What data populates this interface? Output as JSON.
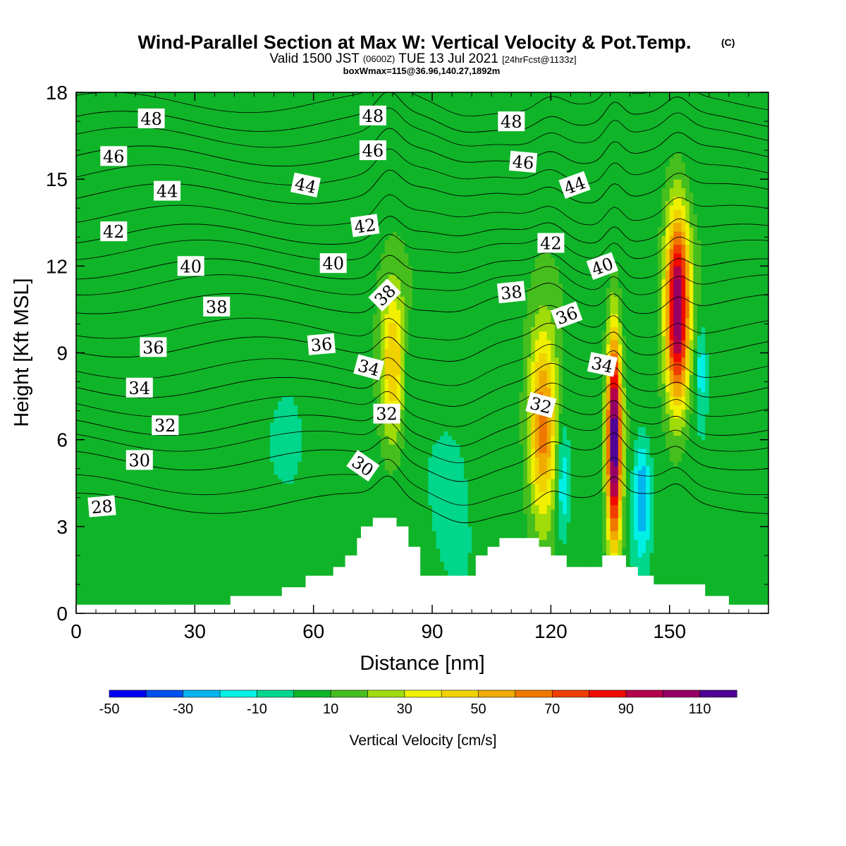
{
  "colors": {
    "levels": [
      "#0000f0",
      "#0050f0",
      "#00b4f0",
      "#00f0e6",
      "#00d78c",
      "#10b428",
      "#46be1e",
      "#a0dc0a",
      "#f0f000",
      "#f0d200",
      "#f0aa00",
      "#f07800",
      "#f03c00",
      "#f00a00",
      "#b4004b",
      "#960064",
      "#500096"
    ],
    "terrain": "#ffffff",
    "contour": "#000000"
  },
  "header": {
    "title": "Wind-Parallel Section at Max W: Vertical Velocity & Pot.Temp.",
    "title_tag": "(C)",
    "subtitle_pre": "Valid 1500 JST",
    "subtitle_zulu": "(0600Z)",
    "subtitle_date": "TUE 13 Jul 2021",
    "subtitle_fcst": "[24hrFcst@1133z]",
    "subtitle3": "boxWmax=115@36.96,140.27,1892m"
  },
  "chart_data": {
    "type": "heatmap",
    "title": "Wind-Parallel Section at Max W: Vertical Velocity & Pot.Temp.",
    "xlabel": "Distance [nm]",
    "ylabel": "Height [Kft MSL]",
    "xlim": [
      0,
      175
    ],
    "ylim": [
      0,
      18
    ],
    "x_ticks": [
      0,
      30,
      60,
      90,
      120,
      150
    ],
    "y_ticks": [
      0,
      3,
      6,
      9,
      12,
      15,
      18
    ],
    "colorbar": {
      "title": "Vertical Velocity [cm/s]",
      "bounds": [
        -50,
        -40,
        -30,
        -20,
        -10,
        0,
        10,
        20,
        30,
        40,
        50,
        60,
        70,
        80,
        90,
        100,
        110,
        120
      ],
      "tick_values": [
        -50,
        -30,
        -10,
        10,
        30,
        50,
        70,
        90,
        110
      ],
      "tick_labels": [
        "-50",
        "-30",
        "-10",
        "10",
        "30",
        "50",
        "70",
        "90",
        "110"
      ]
    },
    "vertical_velocity_background": 5,
    "updraft_cores": [
      {
        "x": 80,
        "z": 8.5,
        "peak": 45
      },
      {
        "x": 118,
        "z": 6.5,
        "peak": 65
      },
      {
        "x": 136,
        "z": 6.0,
        "peak": 115
      },
      {
        "x": 152,
        "z": 10.5,
        "peak": 105
      }
    ],
    "downdraft_cores": [
      {
        "x": 143,
        "z": 4.0,
        "peak": -38
      },
      {
        "x": 123,
        "z": 4.5,
        "peak": -25
      },
      {
        "x": 158,
        "z": 8.5,
        "peak": -22
      },
      {
        "x": 95,
        "z": 4.0,
        "peak": -14
      },
      {
        "x": 54,
        "z": 6.0,
        "peak": -12
      },
      {
        "x": 84,
        "z": 8.5,
        "peak": -12
      }
    ],
    "terrain_profile": [
      [
        0,
        0.3
      ],
      [
        39,
        0.3
      ],
      [
        39,
        0.6
      ],
      [
        52,
        0.6
      ],
      [
        52,
        0.9
      ],
      [
        58,
        0.9
      ],
      [
        58,
        1.3
      ],
      [
        65,
        1.3
      ],
      [
        65,
        1.6
      ],
      [
        68,
        1.6
      ],
      [
        68,
        2.0
      ],
      [
        71,
        2.0
      ],
      [
        71,
        2.6
      ],
      [
        72,
        2.6
      ],
      [
        72,
        3.0
      ],
      [
        75,
        3.0
      ],
      [
        75,
        3.3
      ],
      [
        81,
        3.3
      ],
      [
        81,
        3.0
      ],
      [
        84,
        3.0
      ],
      [
        84,
        2.3
      ],
      [
        87,
        2.3
      ],
      [
        87,
        1.3
      ],
      [
        101,
        1.3
      ],
      [
        101,
        2.0
      ],
      [
        104,
        2.0
      ],
      [
        104,
        2.3
      ],
      [
        107,
        2.3
      ],
      [
        107,
        2.6
      ],
      [
        117,
        2.6
      ],
      [
        117,
        2.3
      ],
      [
        120,
        2.3
      ],
      [
        120,
        2.0
      ],
      [
        124,
        2.0
      ],
      [
        124,
        1.6
      ],
      [
        133,
        1.6
      ],
      [
        133,
        2.0
      ],
      [
        139,
        2.0
      ],
      [
        139,
        1.6
      ],
      [
        142,
        1.6
      ],
      [
        142,
        1.3
      ],
      [
        146,
        1.3
      ],
      [
        146,
        1.0
      ],
      [
        159,
        1.0
      ],
      [
        159,
        0.6
      ],
      [
        165,
        0.6
      ],
      [
        165,
        0.3
      ],
      [
        175,
        0.3
      ]
    ],
    "theta_contours": [
      {
        "value": 28,
        "base": 3.8
      },
      {
        "value": 30,
        "base": 5.3
      },
      {
        "value": 32,
        "base": 6.5
      },
      {
        "value": 34,
        "base": 7.8
      },
      {
        "value": 36,
        "base": 9.2
      },
      {
        "value": 38,
        "base": 10.7
      },
      {
        "value": 40,
        "base": 11.9
      },
      {
        "value": 42,
        "base": 13.1
      },
      {
        "value": 44,
        "base": 14.5
      },
      {
        "value": 46,
        "base": 15.8
      },
      {
        "value": 48,
        "base": 17.0
      }
    ],
    "contour_labels": [
      {
        "text": "48",
        "x": 19,
        "z": 17.1,
        "rot": 0
      },
      {
        "text": "48",
        "x": 75,
        "z": 17.2,
        "rot": 0
      },
      {
        "text": "48",
        "x": 110,
        "z": 17.0,
        "rot": 0
      },
      {
        "text": "46",
        "x": 9.5,
        "z": 15.8,
        "rot": 0
      },
      {
        "text": "46",
        "x": 75,
        "z": 16.0,
        "rot": 0
      },
      {
        "text": "46",
        "x": 113,
        "z": 15.6,
        "rot": 5
      },
      {
        "text": "44",
        "x": 23,
        "z": 14.6,
        "rot": 0
      },
      {
        "text": "44",
        "x": 58,
        "z": 14.8,
        "rot": 12
      },
      {
        "text": "44",
        "x": 126,
        "z": 14.8,
        "rot": -20
      },
      {
        "text": "42",
        "x": 9.5,
        "z": 13.2,
        "rot": 0
      },
      {
        "text": "42",
        "x": 73,
        "z": 13.4,
        "rot": -8
      },
      {
        "text": "42",
        "x": 120,
        "z": 12.8,
        "rot": 0
      },
      {
        "text": "40",
        "x": 29,
        "z": 12.0,
        "rot": 0
      },
      {
        "text": "40",
        "x": 65,
        "z": 12.1,
        "rot": 0
      },
      {
        "text": "40",
        "x": 133,
        "z": 12.0,
        "rot": -20
      },
      {
        "text": "38",
        "x": 35.5,
        "z": 10.6,
        "rot": 0
      },
      {
        "text": "38",
        "x": 78,
        "z": 11.0,
        "rot": -45
      },
      {
        "text": "38",
        "x": 110,
        "z": 11.1,
        "rot": -6
      },
      {
        "text": "36",
        "x": 19.5,
        "z": 9.2,
        "rot": 0
      },
      {
        "text": "36",
        "x": 62,
        "z": 9.3,
        "rot": -5
      },
      {
        "text": "36",
        "x": 124,
        "z": 10.3,
        "rot": -20
      },
      {
        "text": "34",
        "x": 16,
        "z": 7.8,
        "rot": 0
      },
      {
        "text": "34",
        "x": 74,
        "z": 8.5,
        "rot": 15
      },
      {
        "text": "34",
        "x": 133,
        "z": 8.6,
        "rot": 12
      },
      {
        "text": "32",
        "x": 22.5,
        "z": 6.5,
        "rot": 0
      },
      {
        "text": "32",
        "x": 78.5,
        "z": 6.9,
        "rot": 0
      },
      {
        "text": "32",
        "x": 117.5,
        "z": 7.2,
        "rot": 15
      },
      {
        "text": "30",
        "x": 16,
        "z": 5.3,
        "rot": 0
      },
      {
        "text": "30",
        "x": 72.5,
        "z": 5.1,
        "rot": 35
      },
      {
        "text": "28",
        "x": 6.5,
        "z": 3.7,
        "rot": -5
      }
    ]
  }
}
